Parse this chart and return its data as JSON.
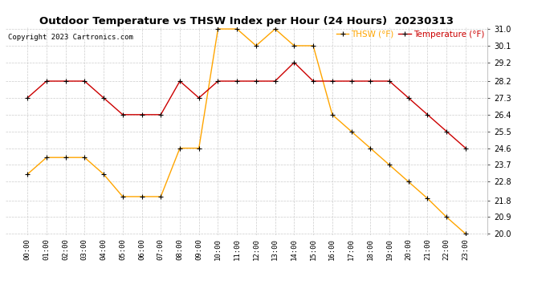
{
  "title": "Outdoor Temperature vs THSW Index per Hour (24 Hours)  20230313",
  "copyright": "Copyright 2023 Cartronics.com",
  "hours": [
    "00:00",
    "01:00",
    "02:00",
    "03:00",
    "04:00",
    "05:00",
    "06:00",
    "07:00",
    "08:00",
    "09:00",
    "10:00",
    "11:00",
    "12:00",
    "13:00",
    "14:00",
    "15:00",
    "16:00",
    "17:00",
    "18:00",
    "19:00",
    "20:00",
    "21:00",
    "22:00",
    "23:00"
  ],
  "thsw": [
    23.2,
    24.1,
    24.1,
    24.1,
    23.2,
    22.0,
    22.0,
    22.0,
    24.6,
    24.6,
    31.0,
    31.0,
    30.1,
    31.0,
    30.1,
    30.1,
    26.4,
    25.5,
    24.6,
    23.7,
    22.8,
    21.9,
    20.9,
    20.0
  ],
  "temperature": [
    27.3,
    28.2,
    28.2,
    28.2,
    27.3,
    26.4,
    26.4,
    26.4,
    28.2,
    27.3,
    28.2,
    28.2,
    28.2,
    28.2,
    29.2,
    28.2,
    28.2,
    28.2,
    28.2,
    28.2,
    27.3,
    26.4,
    25.5,
    24.6
  ],
  "thsw_color": "#FFA500",
  "temp_color": "#CC0000",
  "marker_color": "black",
  "bg_color": "#ffffff",
  "grid_color": "#cccccc",
  "ylim_min": 20.0,
  "ylim_max": 31.0,
  "yticks": [
    20.0,
    20.9,
    21.8,
    22.8,
    23.7,
    24.6,
    25.5,
    26.4,
    27.3,
    28.2,
    29.2,
    30.1,
    31.0
  ],
  "legend_thsw": "THSW (°F)",
  "legend_temp": "Temperature (°F)",
  "title_fontsize": 9.5,
  "copyright_fontsize": 6.5,
  "legend_fontsize": 7.5,
  "tick_fontsize": 6.5,
  "ytick_fontsize": 7
}
